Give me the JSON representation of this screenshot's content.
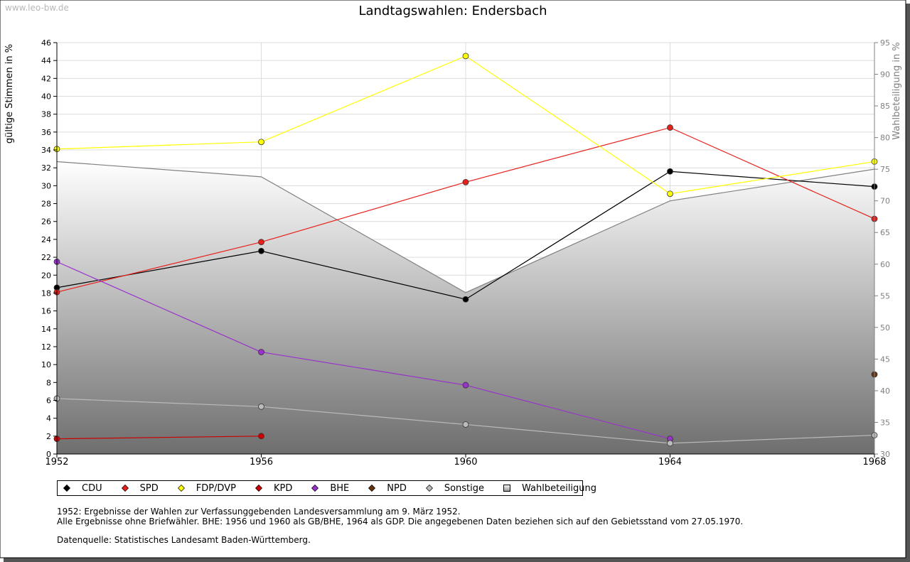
{
  "watermark": "www.leo-bw.de",
  "notes": {
    "line1": "1952: Ergebnisse der Wahlen zur Verfassunggebenden Landesversammlung am 9. März 1952.",
    "line2": "Alle Ergebnisse ohne Briefwähler. BHE: 1956 und 1960 als GB/BHE, 1964 als GDP. Die angegebenen Daten beziehen sich auf den Gebietsstand vom 27.05.1970.",
    "source": "Datenquelle: Statistisches Landesamt Baden-Württemberg."
  },
  "chart_data": {
    "type": "line",
    "title": "Landtagswahlen: Endersbach",
    "ylabel": "gültige Stimmen in %",
    "y2label": "Wahlbeteiligung in %",
    "x": [
      1952,
      1956,
      1960,
      1964,
      1968
    ],
    "xticks": [
      "1952",
      "1956",
      "1960",
      "1964",
      "1968"
    ],
    "ylim": [
      0,
      46
    ],
    "yticks": [
      0,
      2,
      4,
      6,
      8,
      10,
      12,
      14,
      16,
      18,
      20,
      22,
      24,
      26,
      28,
      30,
      32,
      34,
      36,
      38,
      40,
      42,
      44,
      46
    ],
    "y2lim": [
      30,
      95
    ],
    "y2ticks": [
      30,
      35,
      40,
      45,
      50,
      55,
      60,
      65,
      70,
      75,
      80,
      85,
      90,
      95
    ],
    "grid": true,
    "series": [
      {
        "name": "CDU",
        "color": "#000000",
        "axis": "left",
        "values": [
          18.6,
          22.7,
          17.3,
          31.6,
          29.9
        ]
      },
      {
        "name": "SPD",
        "color": "#e8201c",
        "axis": "left",
        "values": [
          18.1,
          23.7,
          30.4,
          36.5,
          26.3
        ]
      },
      {
        "name": "FDP/DVP",
        "color": "#ffff00",
        "axis": "left",
        "values": [
          34.1,
          34.9,
          44.5,
          29.1,
          32.7
        ]
      },
      {
        "name": "KPD",
        "color": "#cc0000",
        "axis": "left",
        "values": [
          1.7,
          2.0,
          null,
          null,
          null
        ]
      },
      {
        "name": "BHE",
        "color": "#9933cc",
        "axis": "left",
        "values": [
          21.5,
          11.4,
          7.7,
          1.7,
          null
        ]
      },
      {
        "name": "NPD",
        "color": "#663311",
        "axis": "left",
        "values": [
          null,
          null,
          null,
          null,
          8.9
        ]
      },
      {
        "name": "Sonstige",
        "color": "#bbbbbb",
        "axis": "left",
        "values": [
          6.2,
          5.3,
          3.3,
          1.2,
          2.1
        ]
      },
      {
        "name": "Wahlbeteiligung",
        "color": "#808080",
        "axis": "right",
        "type": "area",
        "values": [
          76.2,
          73.8,
          55.5,
          70.0,
          75.0
        ]
      }
    ],
    "legend": [
      "CDU",
      "SPD",
      "FDP/DVP",
      "KPD",
      "BHE",
      "NPD",
      "Sonstige",
      "Wahlbeteiligung"
    ]
  }
}
